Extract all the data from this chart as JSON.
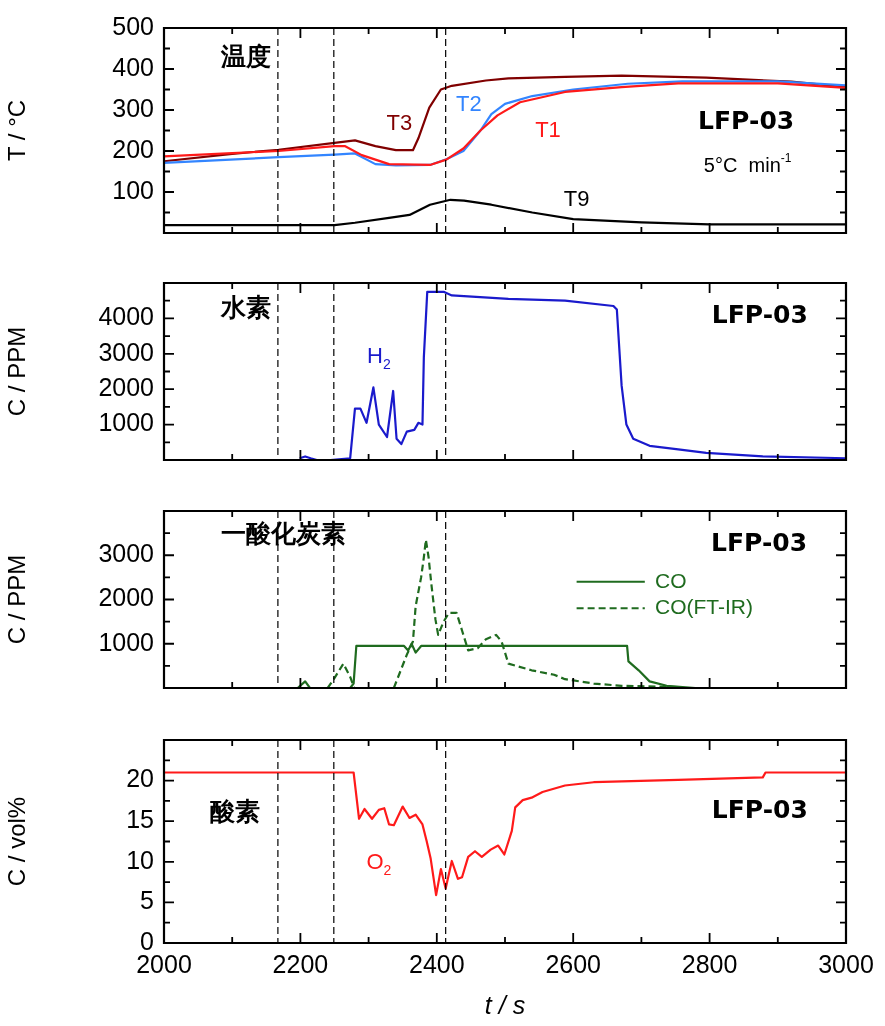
{
  "chart_data": [
    {
      "type": "line",
      "ylabel": "T / °C",
      "annotations": [
        "温度",
        "LFP-03",
        "5°C  min$^{-1}$"
      ],
      "xlim": [
        2000,
        3000
      ],
      "xticks": [
        2000,
        {
          "value": 2100,
          "label": null
        },
        2200,
        {
          "value": 2300,
          "label": null
        },
        2400,
        {
          "value": 2500,
          "label": null
        },
        2600,
        {
          "value": 2700,
          "label": null
        },
        2800,
        {
          "value": 2900,
          "label": null
        },
        3000
      ],
      "ylim": [
        0,
        500
      ],
      "yticks": [
        {
          "value": 0,
          "label": null
        },
        {
          "value": 50,
          "label": null
        },
        100,
        {
          "value": 150,
          "label": null
        },
        200,
        {
          "value": 250,
          "label": null
        },
        300,
        {
          "value": 350,
          "label": null
        },
        400,
        {
          "value": 450,
          "label": null
        },
        500
      ],
      "tick_labels": "y",
      "grid": false,
      "legend": false,
      "ref_lines": [
        {
          "axis": "x",
          "value": 2167,
          "color": "#000000",
          "line_style": "dashed"
        },
        {
          "axis": "x",
          "value": 2249,
          "color": "#000000",
          "line_style": "dashed"
        },
        {
          "axis": "x",
          "value": 2413,
          "color": "#000000",
          "line_style": "dashed"
        }
      ],
      "series": [
        {
          "name": "T1",
          "color": "#ff1a1a",
          "x": [
            2000,
            2100,
            2168,
            2250,
            2265,
            2290,
            2330,
            2390,
            2414,
            2439,
            2464,
            2489,
            2522,
            2588,
            2671,
            2754,
            2900,
            3000
          ],
          "values": [
            187,
            195,
            200,
            212,
            212,
            190,
            168,
            166,
            179,
            206,
            250,
            287,
            319,
            344,
            356,
            365,
            365,
            354
          ]
        },
        {
          "name": "T2",
          "color": "#3385ff",
          "x": [
            2000,
            2168,
            2250,
            2280,
            2310,
            2340,
            2390,
            2414,
            2439,
            2464,
            2480,
            2500,
            2540,
            2600,
            2680,
            2760,
            2900,
            3000
          ],
          "values": [
            171,
            185,
            191,
            194,
            168,
            165,
            166,
            180,
            200,
            250,
            290,
            315,
            334,
            350,
            364,
            370,
            370,
            360
          ]
        },
        {
          "name": "T3",
          "color": "#800000",
          "x": [
            2000,
            2100,
            2168,
            2250,
            2280,
            2310,
            2340,
            2365,
            2373,
            2389,
            2406,
            2422,
            2472,
            2505,
            2588,
            2671,
            2795,
            2920,
            3000
          ],
          "values": [
            175,
            193,
            203,
            220,
            226,
            212,
            202,
            202,
            231,
            306,
            350,
            359,
            372,
            377,
            381,
            384,
            379,
            369,
            356
          ]
        },
        {
          "name": "T9",
          "color": "#000000",
          "x": [
            2000,
            2250,
            2280,
            2330,
            2360,
            2390,
            2420,
            2440,
            2480,
            2540,
            2600,
            2700,
            2800,
            3000
          ],
          "values": [
            19,
            19,
            25,
            37,
            44,
            69,
            81,
            79,
            69,
            50,
            34,
            26,
            21,
            21
          ]
        }
      ]
    },
    {
      "type": "line",
      "ylabel": "C / PPM",
      "annotations": [
        "水素",
        "LFP-03"
      ],
      "xlim": [
        2000,
        3000
      ],
      "xticks": [
        2000,
        {
          "value": 2100,
          "label": null
        },
        2200,
        {
          "value": 2300,
          "label": null
        },
        2400,
        {
          "value": 2500,
          "label": null
        },
        2600,
        {
          "value": 2700,
          "label": null
        },
        2800,
        {
          "value": 2900,
          "label": null
        },
        3000
      ],
      "ylim": [
        0,
        5000
      ],
      "yticks": [
        {
          "value": 0,
          "label": null
        },
        {
          "value": 500,
          "label": null
        },
        1000,
        {
          "value": 1500,
          "label": null
        },
        2000,
        {
          "value": 2500,
          "label": null
        },
        3000,
        {
          "value": 3500,
          "label": null
        },
        4000,
        {
          "value": 4500,
          "label": null
        },
        {
          "value": 5000,
          "label": null
        }
      ],
      "tick_labels": "y",
      "grid": false,
      "legend": false,
      "ref_lines": [
        {
          "axis": "x",
          "value": 2167,
          "color": "#000000",
          "line_style": "dashed"
        },
        {
          "axis": "x",
          "value": 2249,
          "color": "#000000",
          "line_style": "dashed"
        },
        {
          "axis": "x",
          "value": 2413,
          "color": "#000000",
          "line_style": "dashed"
        }
      ],
      "series": [
        {
          "name": "H$_{2}$",
          "color": "#1a1acc",
          "x": [
            2199,
            2207,
            2215,
            2224,
            2244,
            2273,
            2280,
            2288,
            2297,
            2307,
            2315,
            2327,
            2336,
            2341,
            2348,
            2356,
            2367,
            2373,
            2379,
            2381,
            2386,
            2410,
            2422,
            2505,
            2588,
            2659,
            2664,
            2671,
            2678,
            2688,
            2712,
            2754,
            2795,
            2878,
            3000
          ],
          "values": [
            50,
            100,
            50,
            0,
            0,
            50,
            1450,
            1450,
            1050,
            2050,
            1000,
            650,
            1950,
            600,
            450,
            800,
            850,
            1050,
            1000,
            2900,
            4750,
            4750,
            4650,
            4550,
            4500,
            4350,
            4250,
            2100,
            1000,
            600,
            400,
            300,
            200,
            100,
            50
          ]
        }
      ]
    },
    {
      "type": "line",
      "ylabel": "C / PPM",
      "annotations": [
        "一酸化炭素",
        "LFP-03"
      ],
      "xlim": [
        2000,
        3000
      ],
      "xticks": [
        2000,
        {
          "value": 2100,
          "label": null
        },
        2200,
        {
          "value": 2300,
          "label": null
        },
        2400,
        {
          "value": 2500,
          "label": null
        },
        2600,
        {
          "value": 2700,
          "label": null
        },
        2800,
        {
          "value": 2900,
          "label": null
        },
        3000
      ],
      "ylim": [
        0,
        4000
      ],
      "yticks": [
        {
          "value": 0,
          "label": null
        },
        {
          "value": 500,
          "label": null
        },
        1000,
        {
          "value": 1500,
          "label": null
        },
        2000,
        {
          "value": 2500,
          "label": null
        },
        3000,
        {
          "value": 3500,
          "label": null
        },
        {
          "value": 4000,
          "label": null
        }
      ],
      "tick_labels": "y",
      "grid": false,
      "legend": "right",
      "ref_lines": [
        {
          "axis": "x",
          "value": 2167,
          "color": "#000000",
          "line_style": "dashed"
        },
        {
          "axis": "x",
          "value": 2249,
          "color": "#000000",
          "line_style": "dashed"
        },
        {
          "axis": "x",
          "value": 2413,
          "color": "#000000",
          "line_style": "dashed"
        }
      ],
      "series": [
        {
          "name": "CO",
          "color": "#1f6b1f",
          "line_style": "solid",
          "x": [
            2196,
            2207,
            2214,
            2273,
            2278,
            2282,
            2352,
            2358,
            2363,
            2369,
            2377,
            2679,
            2681,
            2696,
            2712,
            2737,
            2779
          ],
          "values": [
            0,
            150,
            0,
            0,
            100,
            950,
            950,
            850,
            1000,
            800,
            950,
            950,
            600,
            400,
            150,
            50,
            0
          ]
        },
        {
          "name": "CO(FT-IR)",
          "color": "#1f6b1f",
          "line_style": "dashed",
          "x": [
            2207,
            2240,
            2249,
            2263,
            2273,
            2279,
            2300,
            2337,
            2356,
            2365,
            2369,
            2377,
            2381,
            2384,
            2388,
            2392,
            2398,
            2402,
            2410,
            2418,
            2429,
            2437,
            2446,
            2460,
            2472,
            2487,
            2495,
            2505,
            2539,
            2572,
            2588,
            2630,
            2671,
            2754
          ],
          "values": [
            0,
            0,
            200,
            550,
            250,
            0,
            null,
            0,
            750,
            1050,
            1850,
            2500,
            2950,
            3350,
            2950,
            2350,
            1550,
            1200,
            1500,
            1700,
            1700,
            1300,
            850,
            900,
            1100,
            1200,
            1050,
            550,
            400,
            300,
            200,
            100,
            50,
            20
          ]
        }
      ]
    },
    {
      "type": "line",
      "xlabel": "t / s",
      "ylabel": "C / vol%",
      "annotations": [
        "酸素",
        "LFP-03"
      ],
      "xlim": [
        2000,
        3000
      ],
      "xticks": [
        2000,
        {
          "value": 2100,
          "label": null
        },
        2200,
        {
          "value": 2300,
          "label": null
        },
        2400,
        {
          "value": 2500,
          "label": null
        },
        2600,
        {
          "value": 2700,
          "label": null
        },
        2800,
        {
          "value": 2900,
          "label": null
        },
        3000
      ],
      "ylim": [
        0,
        25
      ],
      "yticks": [
        0,
        {
          "value": 2.5,
          "label": null
        },
        5,
        {
          "value": 7.5,
          "label": null
        },
        10,
        {
          "value": 12.5,
          "label": null
        },
        15,
        {
          "value": 17.5,
          "label": null
        },
        20,
        {
          "value": 22.5,
          "label": null
        },
        {
          "value": 25,
          "label": null
        }
      ],
      "grid": false,
      "legend": false,
      "ref_lines": [
        {
          "axis": "x",
          "value": 2167,
          "color": "#000000",
          "line_style": "dashed"
        },
        {
          "axis": "x",
          "value": 2249,
          "color": "#000000",
          "line_style": "dashed"
        },
        {
          "axis": "x",
          "value": 2413,
          "color": "#000000",
          "line_style": "dashed"
        }
      ],
      "series": [
        {
          "name": "O$_{2}$",
          "color": "#ff1a1a",
          "x": [
            2000,
            2278,
            2286,
            2294,
            2305,
            2315,
            2323,
            2330,
            2337,
            2350,
            2360,
            2369,
            2379,
            2385,
            2391,
            2399,
            2406,
            2413,
            2422,
            2431,
            2437,
            2446,
            2456,
            2466,
            2479,
            2490,
            2499,
            2510,
            2515,
            2526,
            2539,
            2555,
            2588,
            2630,
            2754,
            2878,
            2882,
            3000
          ],
          "values": [
            21,
            21,
            15.3,
            16.5,
            15.3,
            16.4,
            16.6,
            14.6,
            14.5,
            16.8,
            15.4,
            15.8,
            14.6,
            12.6,
            10.4,
            5.9,
            9.1,
            6.7,
            10.1,
            7.9,
            8.1,
            10.6,
            11.3,
            10.6,
            11.5,
            12,
            10.9,
            13.8,
            16.7,
            17.6,
            17.9,
            18.6,
            19.4,
            19.8,
            20.1,
            20.4,
            21,
            21
          ]
        }
      ]
    }
  ]
}
